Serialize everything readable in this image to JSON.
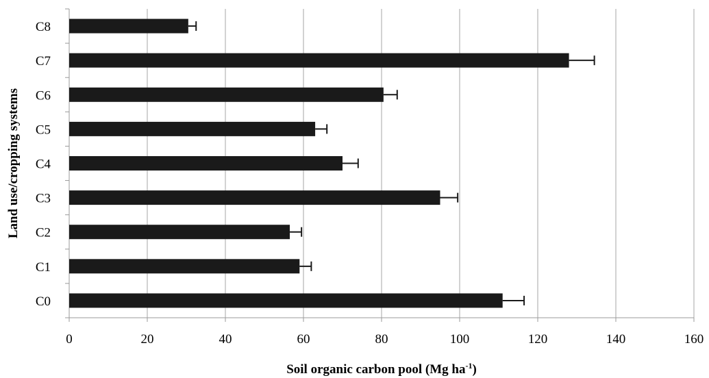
{
  "chart_data": {
    "type": "bar",
    "orientation": "horizontal",
    "categories": [
      "C0",
      "C1",
      "C2",
      "C3",
      "C4",
      "C5",
      "C6",
      "C7",
      "C8"
    ],
    "values": [
      111,
      59,
      56.5,
      95,
      70,
      63,
      80.5,
      128,
      30.5
    ],
    "error_upper": [
      5.5,
      3,
      3,
      4.5,
      4,
      3,
      3.5,
      6.5,
      2
    ],
    "xlabel_main": "Soil organic carbon pool (Mg ha",
    "xlabel_sup": "-1",
    "xlabel_close": ")",
    "ylabel": "Land use/cropping systems",
    "xlim": [
      0,
      160
    ],
    "xticks": [
      0,
      20,
      40,
      60,
      80,
      100,
      120,
      140,
      160
    ],
    "grid": "vertical",
    "legend": "none",
    "bar_color": "#1a1a1a",
    "grid_color": "#a6a6a6",
    "axis_color": "#999999"
  }
}
